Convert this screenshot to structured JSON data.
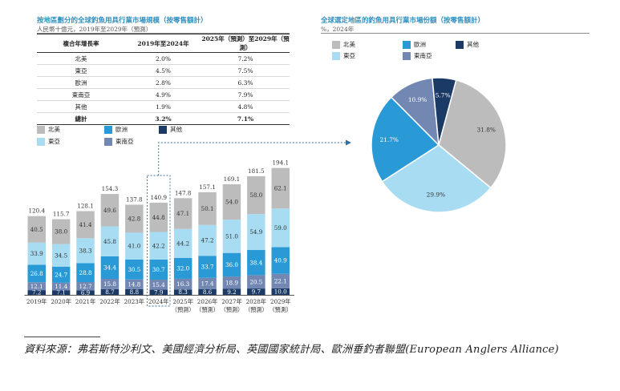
{
  "left_panel": {
    "title": "按地區劃分的全球釣魚用具行業市場規模（按零售額計）",
    "subtitle": "人民幣十億元，2019年至2029年（預測）"
  },
  "right_panel": {
    "title": "全球選定地區的釣魚用具行業市場份額（按零售額計）",
    "subtitle": "%，2024年"
  },
  "cagr_table": {
    "headers": [
      "複合年增長率",
      "2019年至2024年",
      "2025年（預測）至2029年（預測）"
    ],
    "rows": [
      [
        "北美",
        "2.0%",
        "7.2%"
      ],
      [
        "東亞",
        "4.5%",
        "7.5%"
      ],
      [
        "歐洲",
        "2.8%",
        "6.3%"
      ],
      [
        "東南亞",
        "4.9%",
        "7.9%"
      ],
      [
        "其他",
        "1.9%",
        "4.8%"
      ]
    ],
    "total": [
      "總計",
      "3.2%",
      "7.1%"
    ]
  },
  "legend": [
    {
      "key": "na",
      "label": "北美",
      "color": "#bcbcbc"
    },
    {
      "key": "eu",
      "label": "歐洲",
      "color": "#2a9ad6"
    },
    {
      "key": "ot",
      "label": "其他",
      "color": "#1b3a66"
    },
    {
      "key": "ea",
      "label": "東亞",
      "color": "#a8dcf2"
    },
    {
      "key": "sea",
      "label": "東南亞",
      "color": "#7288b2"
    }
  ],
  "chart_data": [
    {
      "type": "bar",
      "stacked": true,
      "title": "按地區劃分的全球釣魚用具行業市場規模（按零售額計）",
      "ylabel": "人民幣十億元",
      "categories": [
        {
          "year": "2019年",
          "note": ""
        },
        {
          "year": "2020年",
          "note": ""
        },
        {
          "year": "2021年",
          "note": ""
        },
        {
          "year": "2022年",
          "note": ""
        },
        {
          "year": "2023年",
          "note": ""
        },
        {
          "year": "2024年",
          "note": ""
        },
        {
          "year": "2025年",
          "note": "（預測）"
        },
        {
          "year": "2026年",
          "note": "（預測）"
        },
        {
          "year": "2027年",
          "note": "（預測）"
        },
        {
          "year": "2028年",
          "note": "（預測）"
        },
        {
          "year": "2029年",
          "note": "（預測）"
        }
      ],
      "series": [
        {
          "name": "其他",
          "color": "#1b3a66",
          "label_color": "#ffffff",
          "values": [
            7.2,
            7.1,
            6.9,
            8.7,
            8.8,
            7.9,
            8.3,
            8.6,
            9.2,
            9.7,
            10.0
          ]
        },
        {
          "name": "東南亞",
          "color": "#7288b2",
          "label_color": "#ffffff",
          "values": [
            12.1,
            11.4,
            12.7,
            15.8,
            14.8,
            15.4,
            16.3,
            17.4,
            18.9,
            20.5,
            22.1
          ]
        },
        {
          "name": "歐洲",
          "color": "#2a9ad6",
          "label_color": "#ffffff",
          "values": [
            26.8,
            24.7,
            28.8,
            34.4,
            30.5,
            30.7,
            32.0,
            33.7,
            36.0,
            38.4,
            40.9
          ]
        },
        {
          "name": "東亞",
          "color": "#a8dcf2",
          "label_color": "#333333",
          "values": [
            33.9,
            34.5,
            38.3,
            45.8,
            41.0,
            42.2,
            44.2,
            47.2,
            51.0,
            54.9,
            59.0
          ]
        },
        {
          "name": "北美",
          "color": "#bcbcbc",
          "label_color": "#333333",
          "values": [
            40.5,
            38.0,
            41.4,
            49.6,
            42.8,
            44.8,
            47.1,
            50.1,
            54.0,
            58.0,
            62.1
          ]
        }
      ],
      "totals": [
        "120.4",
        "115.7",
        "128.1",
        "154.3",
        "137.8",
        "140.9",
        "147.8",
        "157.1",
        "169.1",
        "181.5",
        "194.1"
      ],
      "highlight_category": "2024年",
      "ylim": [
        0,
        200
      ]
    },
    {
      "type": "pie",
      "title": "全球選定地區的釣魚用具行業市場份額（按零售額計）",
      "unit": "%",
      "slices": [
        {
          "name": "北美",
          "value": 31.8,
          "label": "31.8%",
          "color": "#bcbcbc",
          "label_color": "#333333"
        },
        {
          "name": "東亞",
          "value": 29.9,
          "label": "29.9%",
          "color": "#a8dcf2",
          "label_color": "#333333"
        },
        {
          "name": "歐洲",
          "value": 21.7,
          "label": "21.7%",
          "color": "#2a9ad6",
          "label_color": "#ffffff"
        },
        {
          "name": "東南亞",
          "value": 10.9,
          "label": "10.9%",
          "color": "#7288b2",
          "label_color": "#ffffff"
        },
        {
          "name": "其他",
          "value": 5.7,
          "label": "5.7%",
          "color": "#1b3a66",
          "label_color": "#ffffff"
        }
      ]
    }
  ],
  "source": "資料來源：弗若斯特沙利文、美國經濟分析局、英國國家統計局、歐洲垂釣者聯盟(European Anglers Alliance)"
}
